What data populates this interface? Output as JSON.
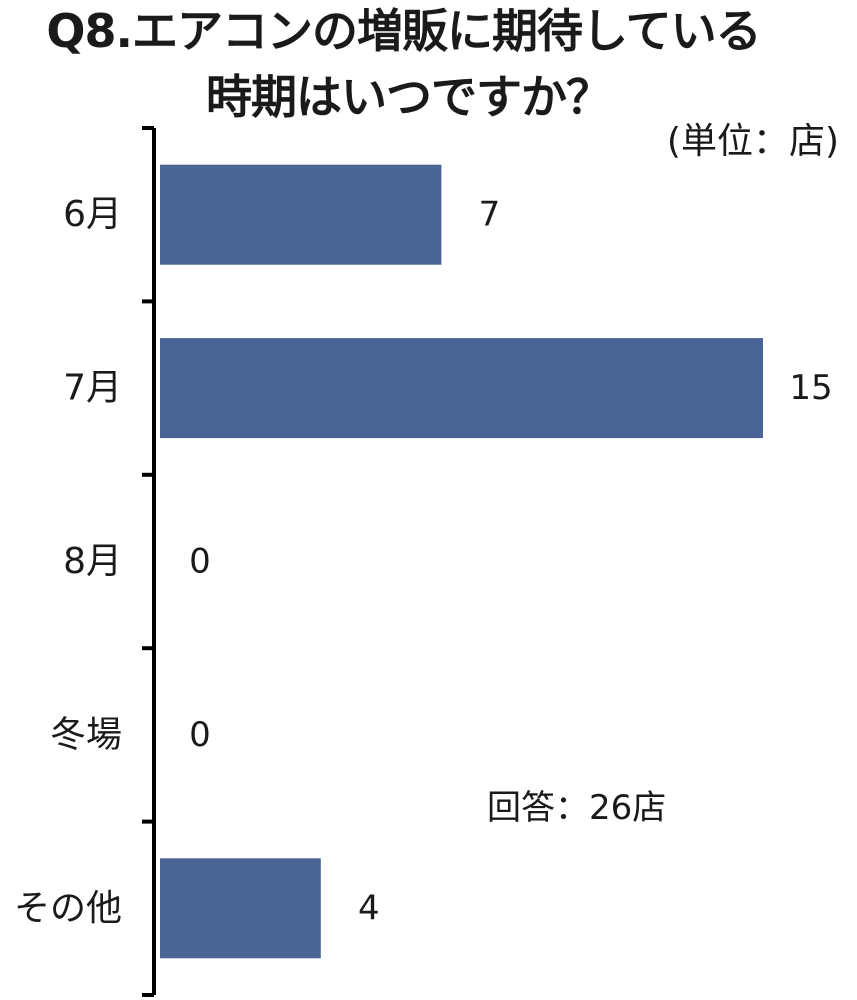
{
  "title_line1": "Q8.エアコンの増販に期待している",
  "title_line2": "時期はいつですか？",
  "unit_note": "(単位：店)",
  "total_note": "回答：26店",
  "colors": {
    "bar": "#4a6595",
    "axis": "#000000"
  },
  "chart_data": {
    "type": "bar",
    "orientation": "horizontal",
    "categories": [
      "6月",
      "7月",
      "8月",
      "冬場",
      "その他"
    ],
    "values": [
      7,
      15,
      0,
      0,
      4
    ],
    "data_labels": [
      "7",
      "15",
      "0",
      "0",
      "4"
    ],
    "title": "Q8.エアコンの増販に期待している時期はいつですか？",
    "xlim": [
      0,
      15
    ],
    "grid": false,
    "legend": "none"
  }
}
